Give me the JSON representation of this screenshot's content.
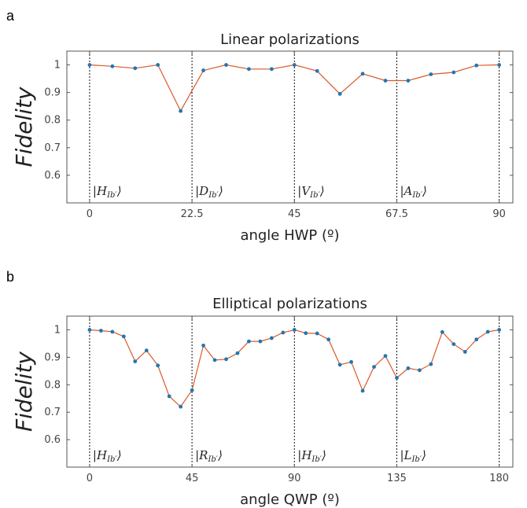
{
  "chart_data": [
    {
      "type": "line",
      "panel_label": "a",
      "title": "Linear polarizations",
      "xlabel": "angle HWP (º)",
      "ylabel": "Fidelity",
      "xlim": [
        -5,
        93
      ],
      "ylim": [
        0.5,
        1.05
      ],
      "xticks": [
        0,
        22.5,
        45,
        67.5,
        90
      ],
      "xtick_labels": [
        "0",
        "22.5",
        "45",
        "67.5",
        "90"
      ],
      "yticks": [
        0.6,
        0.7,
        0.8,
        0.9,
        1.0
      ],
      "ytick_labels": [
        "0.6",
        "0.7",
        "0.8",
        "0.9",
        "1"
      ],
      "vlines": [
        0,
        22.5,
        45,
        67.5,
        90
      ],
      "annotations": [
        {
          "x": 0,
          "text": "|H",
          "sub": "Ib′",
          "close": "⟩"
        },
        {
          "x": 22.5,
          "text": "|D",
          "sub": "Ib′",
          "close": "⟩"
        },
        {
          "x": 45,
          "text": "|V",
          "sub": "Ib′",
          "close": "⟩"
        },
        {
          "x": 67.5,
          "text": "|A",
          "sub": "Ib′",
          "close": "⟩"
        }
      ],
      "x": [
        0,
        5,
        10,
        15,
        20,
        25,
        30,
        35,
        40,
        45,
        50,
        55,
        60,
        65,
        70,
        75,
        80,
        85,
        90
      ],
      "y": [
        1.0,
        0.995,
        0.988,
        1.0,
        0.833,
        0.98,
        1.0,
        0.985,
        0.985,
        1.0,
        0.978,
        0.895,
        0.968,
        0.943,
        0.943,
        0.966,
        0.973,
        0.998,
        1.0
      ],
      "grid": false
    },
    {
      "type": "line",
      "panel_label": "b",
      "title": "Elliptical polarizations",
      "xlabel": "angle QWP (º)",
      "ylabel": "Fidelity",
      "xlim": [
        -10,
        186
      ],
      "ylim": [
        0.5,
        1.05
      ],
      "xticks": [
        0,
        45,
        90,
        135,
        180
      ],
      "xtick_labels": [
        "0",
        "45",
        "90",
        "135",
        "180"
      ],
      "yticks": [
        0.6,
        0.7,
        0.8,
        0.9,
        1.0
      ],
      "ytick_labels": [
        "0.6",
        "0.7",
        "0.8",
        "0.9",
        "1"
      ],
      "vlines": [
        0,
        45,
        90,
        135,
        180
      ],
      "annotations": [
        {
          "x": 0,
          "text": "|H",
          "sub": "Ib′",
          "close": "⟩"
        },
        {
          "x": 45,
          "text": "|R",
          "sub": "Ib′",
          "close": "⟩"
        },
        {
          "x": 90,
          "text": "|H",
          "sub": "Ib′",
          "close": "⟩"
        },
        {
          "x": 135,
          "text": "|L",
          "sub": "Ib′",
          "close": "⟩"
        }
      ],
      "x": [
        0,
        5,
        10,
        15,
        20,
        25,
        30,
        35,
        40,
        45,
        50,
        55,
        60,
        65,
        70,
        75,
        80,
        85,
        90,
        95,
        100,
        105,
        110,
        115,
        120,
        125,
        130,
        135,
        140,
        145,
        150,
        155,
        160,
        165,
        170,
        175,
        180
      ],
      "y": [
        1.0,
        0.997,
        0.993,
        0.976,
        0.885,
        0.925,
        0.87,
        0.758,
        0.72,
        0.78,
        0.943,
        0.89,
        0.893,
        0.915,
        0.958,
        0.958,
        0.97,
        0.99,
        1.0,
        0.988,
        0.987,
        0.965,
        0.873,
        0.883,
        0.778,
        0.865,
        0.905,
        0.825,
        0.86,
        0.853,
        0.875,
        0.992,
        0.948,
        0.92,
        0.965,
        0.993,
        1.0
      ],
      "grid": false
    }
  ]
}
